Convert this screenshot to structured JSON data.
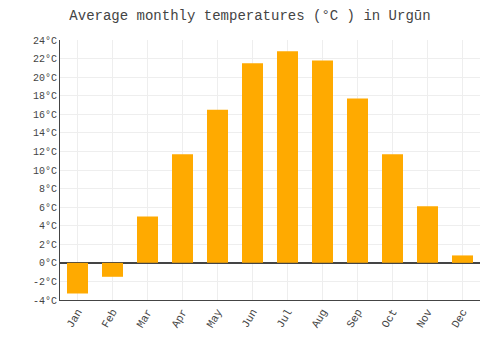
{
  "chart_data": {
    "type": "bar",
    "title": "Average monthly temperatures (°C ) in Urgūn",
    "categories": [
      "Jan",
      "Feb",
      "Mar",
      "Apr",
      "May",
      "Jun",
      "Jul",
      "Aug",
      "Sep",
      "Oct",
      "Nov",
      "Dec"
    ],
    "values": [
      -3.3,
      -1.5,
      5.0,
      11.7,
      16.5,
      21.5,
      22.8,
      21.8,
      17.7,
      11.7,
      6.1,
      0.8
    ],
    "color": "#FFAA00",
    "ylim": [
      -4,
      24
    ],
    "yticks": [
      {
        "value": -4,
        "label": "-4°C"
      },
      {
        "value": -2,
        "label": "-2°C"
      },
      {
        "value": 0,
        "label": "0°C"
      },
      {
        "value": 2,
        "label": "2°C"
      },
      {
        "value": 4,
        "label": "4°C"
      },
      {
        "value": 6,
        "label": "6°C"
      },
      {
        "value": 8,
        "label": "8°C"
      },
      {
        "value": 10,
        "label": "10°C"
      },
      {
        "value": 12,
        "label": "12°C"
      },
      {
        "value": 14,
        "label": "14°C"
      },
      {
        "value": 16,
        "label": "16°C"
      },
      {
        "value": 18,
        "label": "18°C"
      },
      {
        "value": 20,
        "label": "20°C"
      },
      {
        "value": 22,
        "label": "22°C"
      },
      {
        "value": 24,
        "label": "24°C"
      }
    ],
    "grid": true
  }
}
